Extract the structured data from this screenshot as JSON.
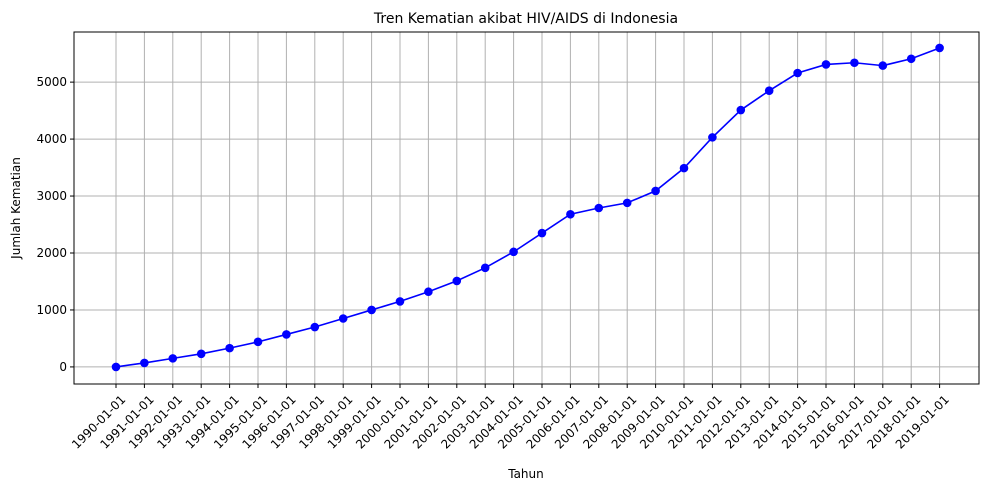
{
  "chart_data": {
    "type": "line",
    "title": "Tren Kematian akibat HIV/AIDS di Indonesia",
    "xlabel": "Tahun",
    "ylabel": "Jumlah Kematian",
    "grid": true,
    "ylim": [
      -300,
      5880
    ],
    "yticks": [
      0,
      1000,
      2000,
      3000,
      4000,
      5000
    ],
    "categories": [
      "1990-01-01",
      "1991-01-01",
      "1992-01-01",
      "1993-01-01",
      "1994-01-01",
      "1995-01-01",
      "1996-01-01",
      "1997-01-01",
      "1998-01-01",
      "1999-01-01",
      "2000-01-01",
      "2001-01-01",
      "2002-01-01",
      "2003-01-01",
      "2004-01-01",
      "2005-01-01",
      "2006-01-01",
      "2007-01-01",
      "2008-01-01",
      "2009-01-01",
      "2010-01-01",
      "2011-01-01",
      "2012-01-01",
      "2013-01-01",
      "2014-01-01",
      "2015-01-01",
      "2016-01-01",
      "2017-01-01",
      "2018-01-01",
      "2019-01-01"
    ],
    "series": [
      {
        "color": "#0000ff",
        "marker": "circle",
        "values": [
          0,
          70,
          150,
          230,
          330,
          440,
          570,
          700,
          850,
          1000,
          1150,
          1320,
          1510,
          1740,
          2020,
          2350,
          2680,
          2790,
          2880,
          3090,
          3490,
          4030,
          4510,
          4850,
          5160,
          5310,
          5340,
          5290,
          5410,
          5600
        ]
      }
    ]
  }
}
